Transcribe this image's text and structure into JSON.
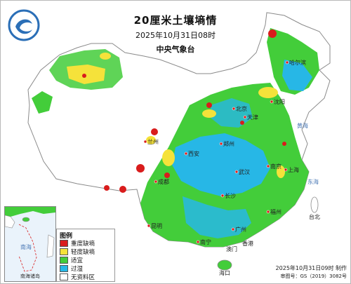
{
  "header": {
    "title": "20厘米土壤墒情",
    "datetime": "2025年10月31日08时",
    "agency": "中央气象台"
  },
  "legend": {
    "title": "图例",
    "items": [
      {
        "label": "重度缺墒",
        "color": "#d91c1c"
      },
      {
        "label": "轻度缺墒",
        "color": "#f5e23a"
      },
      {
        "label": "适宜",
        "color": "#43cd3a"
      },
      {
        "label": "过湿",
        "color": "#27b7e6"
      },
      {
        "label": "无资料区",
        "color": "#ffffff"
      }
    ]
  },
  "inset": {
    "label": "南海诸岛",
    "sea_label": "南海"
  },
  "footer": {
    "production": "2025年10月31日09时 制作",
    "approval": "审图号：GS（2019）3082号"
  },
  "places": [
    {
      "name": "北京"
    },
    {
      "name": "天津"
    },
    {
      "name": "上海"
    },
    {
      "name": "南京"
    },
    {
      "name": "武汉"
    },
    {
      "name": "长沙"
    },
    {
      "name": "广州"
    },
    {
      "name": "南宁"
    },
    {
      "name": "昆明"
    },
    {
      "name": "成都"
    },
    {
      "name": "西安"
    },
    {
      "name": "兰州"
    },
    {
      "name": "郑州"
    },
    {
      "name": "福州"
    },
    {
      "name": "香港"
    },
    {
      "name": "澳门"
    },
    {
      "name": "台北"
    },
    {
      "name": "海口"
    },
    {
      "name": "哈尔滨"
    },
    {
      "name": "沈阳"
    }
  ],
  "seas": [
    {
      "name": "黄海"
    },
    {
      "name": "东海"
    },
    {
      "name": "南海"
    }
  ]
}
